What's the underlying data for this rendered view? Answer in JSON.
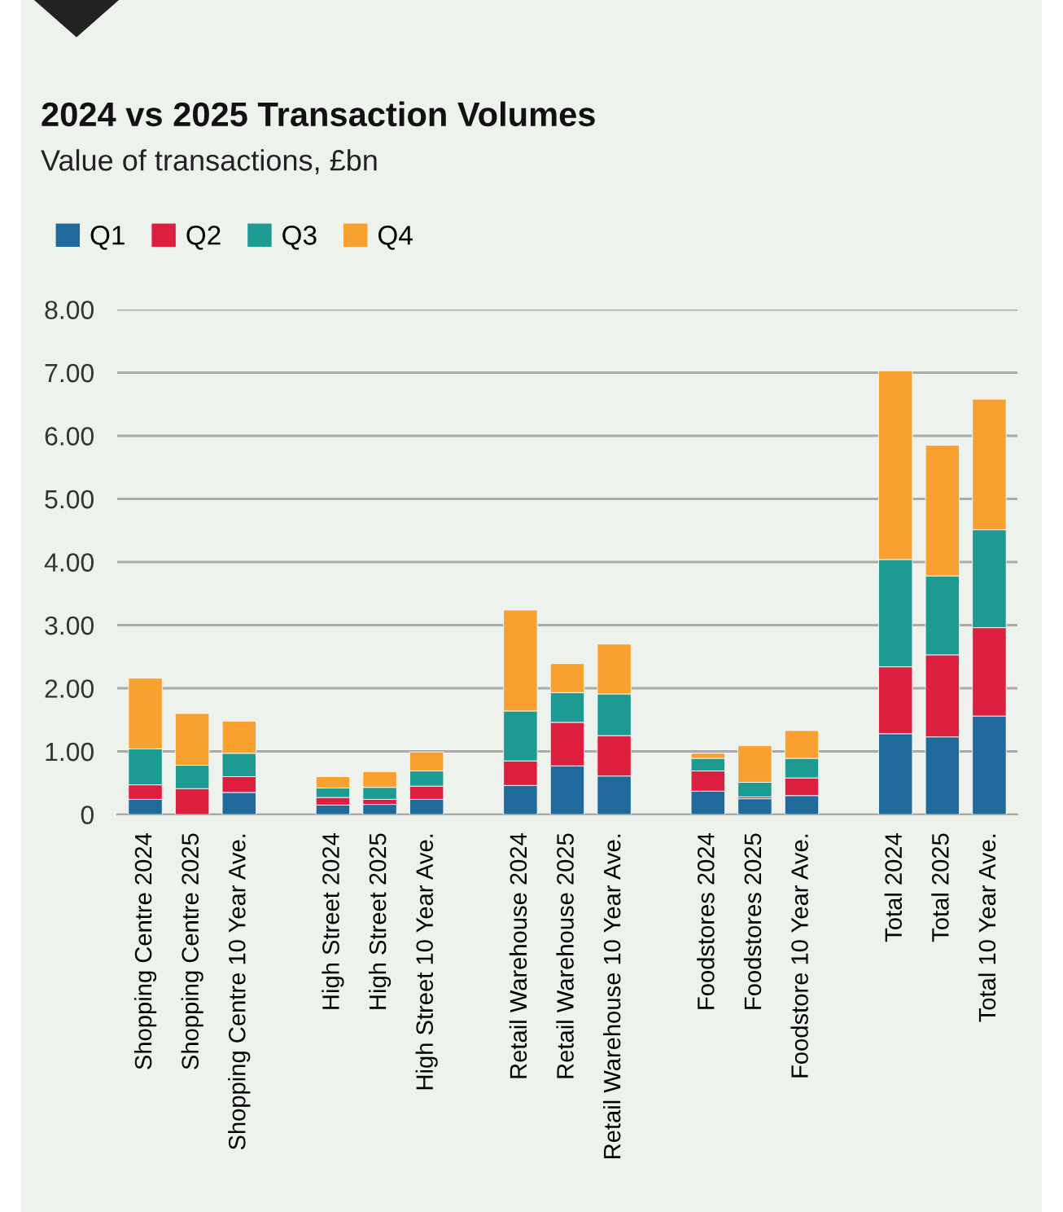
{
  "chart_data": {
    "type": "bar",
    "title": "2024 vs 2025 Transaction Volumes",
    "subtitle": "Value of transactions, £bn",
    "categories": [
      "Shopping Centre 2024",
      "Shopping Centre 2025",
      "Shopping Centre 10 Year Ave.",
      null,
      "High Street 2024",
      "High Street 2025",
      "High Street 10 Year Ave.",
      null,
      "Retail Warehouse 2024",
      "Retail Warehouse 2025",
      "Retail Warehouse 10 Year Ave.",
      null,
      "Foodstores 2024",
      "Foodstores 2025",
      "Foodstore 10 Year Ave.",
      null,
      "Total 2024",
      "Total 2025",
      "Total 10 Year Ave."
    ],
    "stacked": true,
    "series": [
      {
        "name": "Q1",
        "color": "#1f6a9a",
        "values": [
          0.24,
          null,
          0.35,
          null,
          0.15,
          0.16,
          0.24,
          null,
          0.46,
          0.77,
          0.61,
          null,
          0.37,
          0.25,
          0.3,
          null,
          1.28,
          1.23,
          1.56
        ]
      },
      {
        "name": "Q2",
        "color": "#dc1f3e",
        "values": [
          0.23,
          0.41,
          0.25,
          null,
          0.12,
          0.08,
          0.21,
          null,
          0.39,
          0.69,
          0.64,
          null,
          0.32,
          0.03,
          0.28,
          null,
          1.06,
          1.3,
          1.4
        ]
      },
      {
        "name": "Q3",
        "color": "#1d9a92",
        "values": [
          0.57,
          0.37,
          0.37,
          null,
          0.15,
          0.19,
          0.24,
          null,
          0.79,
          0.47,
          0.66,
          null,
          0.2,
          0.23,
          0.31,
          null,
          1.7,
          1.25,
          1.55
        ]
      },
      {
        "name": "Q4",
        "color": "#f9a130",
        "values": [
          1.12,
          0.82,
          0.51,
          null,
          0.18,
          0.25,
          0.3,
          null,
          1.6,
          0.46,
          0.79,
          null,
          0.08,
          0.58,
          0.44,
          null,
          2.99,
          2.07,
          2.07
        ]
      }
    ],
    "ylim": [
      0,
      8
    ],
    "yticks": [
      {
        "value": 0,
        "label": "0"
      },
      {
        "value": 1,
        "label": "1.00"
      },
      {
        "value": 2,
        "label": "2.00"
      },
      {
        "value": 3,
        "label": "3.00"
      },
      {
        "value": 4,
        "label": "4.00"
      },
      {
        "value": 5,
        "label": "5.00"
      },
      {
        "value": 6,
        "label": "6.00"
      },
      {
        "value": 7,
        "label": "7.00"
      },
      {
        "value": 8,
        "label": "8.00"
      }
    ],
    "grid": "y",
    "legend": "top left"
  }
}
